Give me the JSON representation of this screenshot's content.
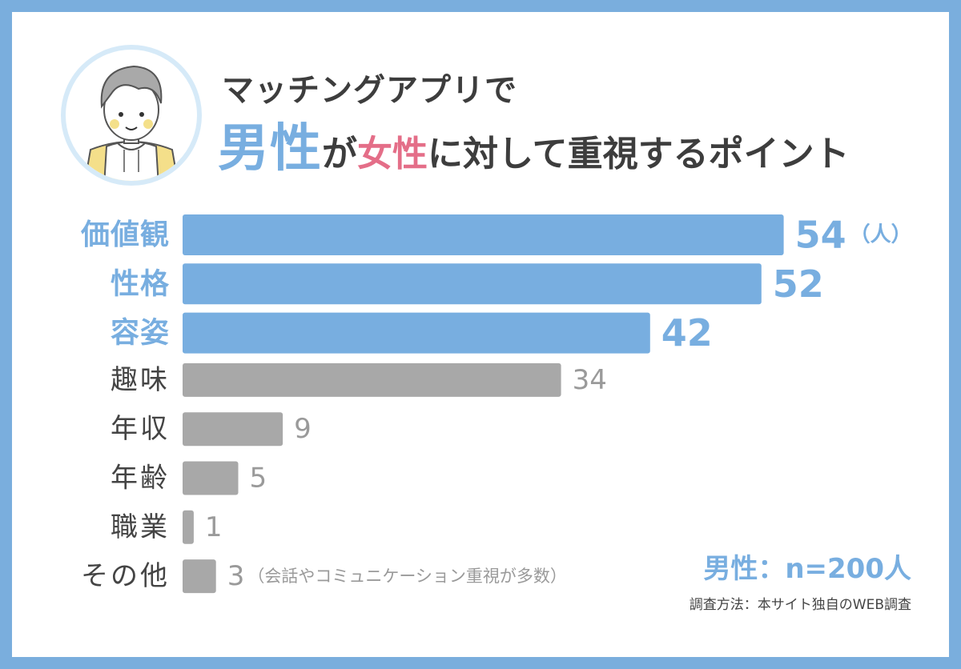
{
  "header": {
    "line1": "マッチングアプリで",
    "male": "男性",
    "ga": "が",
    "female": "女性",
    "rest": "に対して重視するポイント"
  },
  "chart_data": {
    "type": "bar",
    "orientation": "horizontal",
    "categories": [
      "価値観",
      "性格",
      "容姿",
      "趣味",
      "年収",
      "年齢",
      "職業",
      "その他"
    ],
    "values": [
      54,
      52,
      42,
      34,
      9,
      5,
      1,
      3
    ],
    "unit_label": "（人）",
    "annotations": {
      "その他": "（会話やコミュニケーション重視が多数）"
    },
    "highlight_count": 3
  },
  "footer": {
    "sample": "男性：n=200人",
    "method": "調査方法：本サイト独自のWEB調査"
  },
  "colors": {
    "frame": "#7aaedd",
    "highlight": "#78aee0",
    "muted_bar": "#a8a8a8",
    "muted_text": "#9a9a9a",
    "label_text": "#444444",
    "female_accent": "#e46e88"
  }
}
